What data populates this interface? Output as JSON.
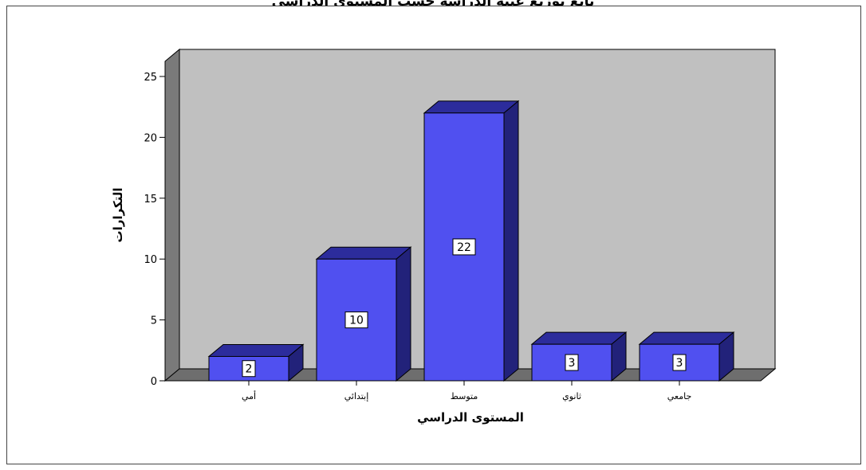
{
  "page": {
    "title": "تابع توزيع عينة الدراسة حسب المستوى الدراسي"
  },
  "chart_data": {
    "type": "bar",
    "title": "",
    "categories": [
      "أمي",
      "إبتدائي",
      "متوسط",
      "ثانوي",
      "جامعي"
    ],
    "values": [
      2,
      10,
      22,
      3,
      3
    ],
    "xlabel": "المستوى الدراسي",
    "ylabel": "التكرارات",
    "ylim": [
      0,
      25
    ],
    "yticks": [
      "0",
      "5",
      "10",
      "15",
      "20",
      "25"
    ],
    "data_labels": [
      "2",
      "10",
      "22",
      "3",
      "3"
    ],
    "grid": false,
    "legend": "none",
    "colors": {
      "bar_front": "#5050f0",
      "bar_top": "#2c2c9c",
      "bar_side": "#22227a",
      "plot_back": "#c0c0c0",
      "plot_floor": "#6e6e6e",
      "plot_left_wall": "#7a7a7a"
    }
  }
}
